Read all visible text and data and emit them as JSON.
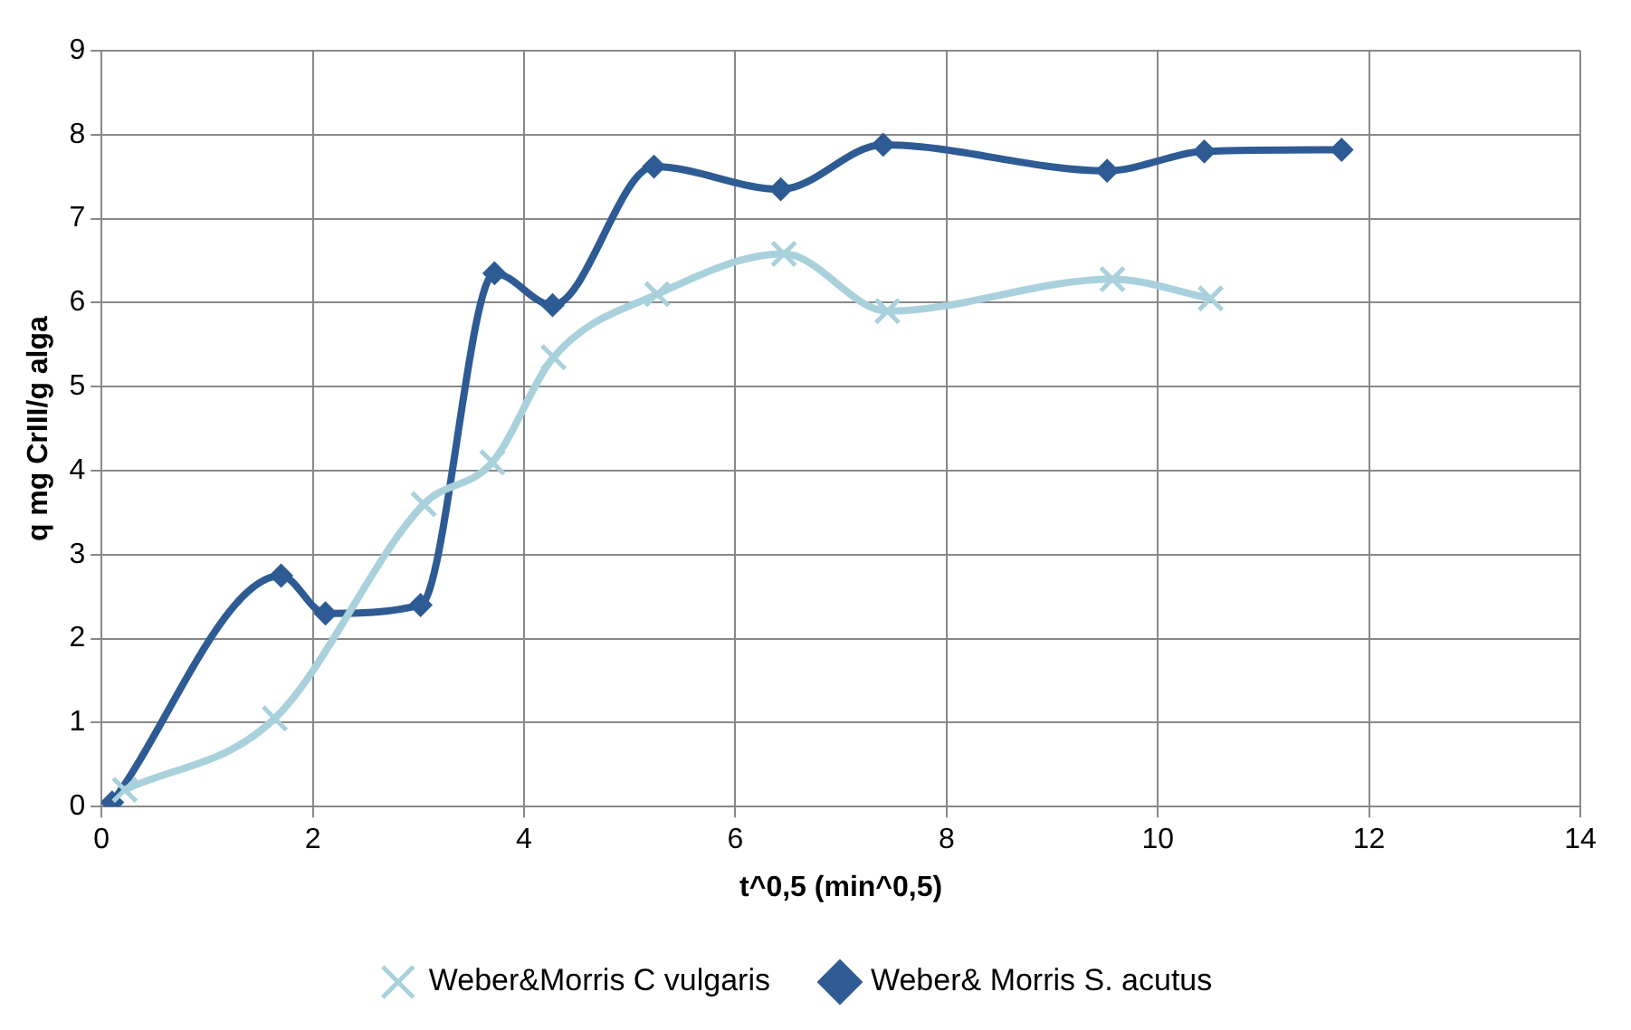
{
  "chart_data": {
    "type": "line",
    "xlabel": "t^0,5 (min^0,5)",
    "ylabel": "q mg CrIII/g alga",
    "xlim": [
      0,
      14
    ],
    "xticks": [
      0,
      2,
      4,
      6,
      8,
      10,
      12,
      14
    ],
    "ylim": [
      0,
      9
    ],
    "yticks": [
      0,
      1,
      2,
      3,
      4,
      5,
      6,
      7,
      8,
      9
    ],
    "grid": true,
    "legend": "bottom",
    "series": [
      {
        "name": "Weber&Morris C vulgaris",
        "color": "#a9d1dc",
        "marker": "cross",
        "x": [
          0.22,
          1.64,
          3.05,
          3.7,
          4.28,
          5.26,
          6.46,
          7.44,
          9.57,
          10.5
        ],
        "values": [
          0.2,
          1.05,
          3.6,
          4.1,
          5.35,
          6.1,
          6.58,
          5.9,
          6.28,
          6.05
        ]
      },
      {
        "name": "Weber& Morris S. acutus",
        "color": "#2e5b94",
        "marker": "diamond",
        "x": [
          0.1,
          1.7,
          2.12,
          3.02,
          3.72,
          4.27,
          5.23,
          6.43,
          7.4,
          9.52,
          10.44,
          11.74
        ],
        "values": [
          0.05,
          2.75,
          2.3,
          2.4,
          6.35,
          5.97,
          7.62,
          7.35,
          7.88,
          7.57,
          7.8,
          7.82
        ]
      }
    ]
  }
}
